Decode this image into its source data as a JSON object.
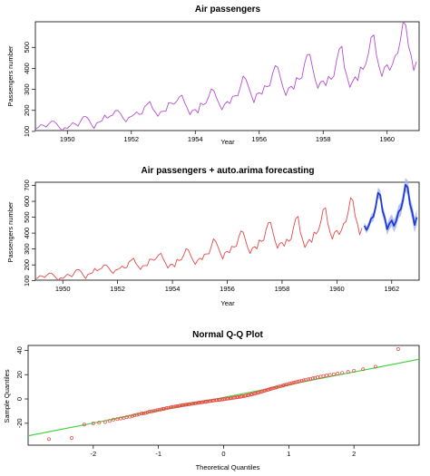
{
  "chart_data": [
    {
      "type": "line",
      "title": "Air passengers",
      "xlabel": "Year",
      "ylabel": "Passengers number",
      "xlim": [
        1949,
        1961
      ],
      "ylim": [
        104,
        622
      ],
      "xticks": [
        1950,
        1952,
        1954,
        1956,
        1958,
        1960
      ],
      "yticks": [
        100,
        200,
        300,
        400,
        500
      ],
      "colors": {
        "series": "#b64ed1"
      },
      "series": [
        {
          "x_start": 1949,
          "step": 0.0833333,
          "values": [
            112,
            118,
            132,
            129,
            121,
            135,
            148,
            148,
            136,
            119,
            104,
            118,
            115,
            126,
            141,
            135,
            125,
            149,
            170,
            170,
            158,
            133,
            114,
            140,
            145,
            150,
            178,
            163,
            172,
            178,
            199,
            199,
            184,
            162,
            146,
            166,
            171,
            180,
            193,
            181,
            183,
            218,
            230,
            242,
            209,
            191,
            172,
            194,
            196,
            196,
            236,
            235,
            229,
            243,
            264,
            272,
            237,
            211,
            180,
            201,
            204,
            188,
            235,
            227,
            234,
            264,
            302,
            293,
            259,
            229,
            203,
            229,
            242,
            233,
            267,
            269,
            270,
            315,
            364,
            347,
            312,
            274,
            237,
            278,
            284,
            277,
            317,
            313,
            318,
            374,
            413,
            405,
            355,
            306,
            271,
            306,
            315,
            301,
            356,
            348,
            355,
            422,
            465,
            467,
            404,
            347,
            305,
            336,
            340,
            318,
            362,
            348,
            363,
            435,
            491,
            505,
            404,
            359,
            310,
            337,
            360,
            342,
            406,
            396,
            420,
            472,
            548,
            559,
            463,
            407,
            362,
            405,
            417,
            391,
            419,
            461,
            472,
            535,
            622,
            606,
            508,
            461,
            390,
            432
          ]
        }
      ]
    },
    {
      "type": "line",
      "title": "Air passengers + auto.arima forecasting",
      "xlabel": "Year",
      "ylabel": "Passengers number",
      "xlim": [
        1949,
        1963
      ],
      "ylim": [
        104,
        720
      ],
      "xticks": [
        1950,
        1952,
        1954,
        1956,
        1958,
        1960,
        1962
      ],
      "yticks": [
        100,
        200,
        300,
        400,
        500,
        600,
        700
      ],
      "colors": {
        "history": "#e34a4a",
        "forecast": "#1f3bd6",
        "interval": "#a9b4e8"
      },
      "series": [
        {
          "x_start": 1949,
          "step": 0.0833333,
          "values": [
            112,
            118,
            132,
            129,
            121,
            135,
            148,
            148,
            136,
            119,
            104,
            118,
            115,
            126,
            141,
            135,
            125,
            149,
            170,
            170,
            158,
            133,
            114,
            140,
            145,
            150,
            178,
            163,
            172,
            178,
            199,
            199,
            184,
            162,
            146,
            166,
            171,
            180,
            193,
            181,
            183,
            218,
            230,
            242,
            209,
            191,
            172,
            194,
            196,
            196,
            236,
            235,
            229,
            243,
            264,
            272,
            237,
            211,
            180,
            201,
            204,
            188,
            235,
            227,
            234,
            264,
            302,
            293,
            259,
            229,
            203,
            229,
            242,
            233,
            267,
            269,
            270,
            315,
            364,
            347,
            312,
            274,
            237,
            278,
            284,
            277,
            317,
            313,
            318,
            374,
            413,
            405,
            355,
            306,
            271,
            306,
            315,
            301,
            356,
            348,
            355,
            422,
            465,
            467,
            404,
            347,
            305,
            336,
            340,
            318,
            362,
            348,
            363,
            435,
            491,
            505,
            404,
            359,
            310,
            337,
            360,
            342,
            406,
            396,
            420,
            472,
            548,
            559,
            463,
            407,
            362,
            405,
            417,
            391,
            419,
            461,
            472,
            535,
            622,
            606,
            508,
            461,
            390,
            432
          ]
        },
        {
          "x_start": 1961,
          "step": 0.0833333,
          "values": [
            446,
            420,
            449,
            491,
            503,
            566,
            654,
            638,
            540,
            494,
            424,
            460,
            480,
            445,
            478,
            534,
            551,
            612,
            704,
            688,
            583,
            532,
            451,
            500
          ],
          "interval_halfwidth": [
            20,
            22,
            24,
            26,
            28,
            30,
            32,
            33,
            34,
            35,
            36,
            37,
            38,
            39,
            40,
            41,
            42,
            43,
            44,
            45,
            46,
            47,
            48,
            49
          ]
        }
      ]
    },
    {
      "type": "scatter",
      "title": "Normal Q-Q Plot",
      "xlabel": "Theoretical Quantiles",
      "ylabel": "Sample Quantiles",
      "xlim": [
        -3,
        3
      ],
      "ylim": [
        -38,
        44
      ],
      "xticks": [
        -2,
        -1,
        0,
        1,
        2
      ],
      "yticks": [
        -20,
        0,
        20,
        40
      ],
      "colors": {
        "points": "#e8453c",
        "line": "#3ccf3c"
      },
      "reference_line": {
        "intercept": 1.2,
        "slope": 10.5
      },
      "points": [
        [
          -2.68,
          -33
        ],
        [
          -2.33,
          -32
        ],
        [
          -2.14,
          -21
        ],
        [
          -2.0,
          -20
        ],
        [
          -1.91,
          -19.5
        ],
        [
          -1.82,
          -19
        ],
        [
          -1.75,
          -18
        ],
        [
          -1.69,
          -17
        ],
        [
          -1.63,
          -16.5
        ],
        [
          -1.58,
          -16
        ],
        [
          -1.53,
          -15.5
        ],
        [
          -1.49,
          -15
        ],
        [
          -1.44,
          -14.5
        ],
        [
          -1.4,
          -14
        ],
        [
          -1.37,
          -13.5
        ],
        [
          -1.33,
          -13
        ],
        [
          -1.3,
          -12.5
        ],
        [
          -1.26,
          -12
        ],
        [
          -1.23,
          -11.8
        ],
        [
          -1.2,
          -11.5
        ],
        [
          -1.17,
          -11
        ],
        [
          -1.14,
          -10.5
        ],
        [
          -1.11,
          -10.2
        ],
        [
          -1.08,
          -10
        ],
        [
          -1.05,
          -9.6
        ],
        [
          -1.02,
          -9.2
        ],
        [
          -0.99,
          -9
        ],
        [
          -0.96,
          -8.6
        ],
        [
          -0.93,
          -8.2
        ],
        [
          -0.91,
          -8
        ],
        [
          -0.88,
          -7.6
        ],
        [
          -0.85,
          -7.3
        ],
        [
          -0.82,
          -7
        ],
        [
          -0.8,
          -6.8
        ],
        [
          -0.77,
          -6.5
        ],
        [
          -0.74,
          -6.2
        ],
        [
          -0.72,
          -6
        ],
        [
          -0.69,
          -5.8
        ],
        [
          -0.67,
          -5.5
        ],
        [
          -0.64,
          -5.2
        ],
        [
          -0.62,
          -5
        ],
        [
          -0.59,
          -4.8
        ],
        [
          -0.57,
          -4.6
        ],
        [
          -0.54,
          -4.4
        ],
        [
          -0.52,
          -4.2
        ],
        [
          -0.49,
          -4
        ],
        [
          -0.47,
          -3.8
        ],
        [
          -0.44,
          -3.6
        ],
        [
          -0.42,
          -3.4
        ],
        [
          -0.39,
          -3.2
        ],
        [
          -0.37,
          -3
        ],
        [
          -0.34,
          -2.8
        ],
        [
          -0.32,
          -2.6
        ],
        [
          -0.29,
          -2.4
        ],
        [
          -0.27,
          -2.2
        ],
        [
          -0.25,
          -2
        ],
        [
          -0.22,
          -1.8
        ],
        [
          -0.2,
          -1.6
        ],
        [
          -0.17,
          -1.4
        ],
        [
          -0.15,
          -1.2
        ],
        [
          -0.12,
          -1
        ],
        [
          -0.1,
          -0.9
        ],
        [
          -0.07,
          -0.8
        ],
        [
          -0.05,
          -0.6
        ],
        [
          -0.02,
          -0.4
        ],
        [
          0.0,
          -0.2
        ],
        [
          0.02,
          0
        ],
        [
          0.05,
          0.2
        ],
        [
          0.07,
          0.3
        ],
        [
          0.1,
          0.5
        ],
        [
          0.12,
          0.7
        ],
        [
          0.15,
          0.9
        ],
        [
          0.17,
          1.1
        ],
        [
          0.2,
          1.3
        ],
        [
          0.22,
          1.5
        ],
        [
          0.25,
          1.7
        ],
        [
          0.27,
          2
        ],
        [
          0.29,
          2.2
        ],
        [
          0.32,
          2.4
        ],
        [
          0.34,
          2.7
        ],
        [
          0.37,
          3
        ],
        [
          0.39,
          3.3
        ],
        [
          0.42,
          3.6
        ],
        [
          0.44,
          4
        ],
        [
          0.47,
          4.3
        ],
        [
          0.49,
          4.7
        ],
        [
          0.52,
          5
        ],
        [
          0.54,
          5.4
        ],
        [
          0.57,
          5.8
        ],
        [
          0.59,
          6.2
        ],
        [
          0.62,
          6.6
        ],
        [
          0.64,
          7
        ],
        [
          0.67,
          7.4
        ],
        [
          0.69,
          7.8
        ],
        [
          0.72,
          8.2
        ],
        [
          0.74,
          8.6
        ],
        [
          0.77,
          9
        ],
        [
          0.8,
          9.4
        ],
        [
          0.82,
          9.8
        ],
        [
          0.85,
          10.2
        ],
        [
          0.88,
          10.6
        ],
        [
          0.91,
          11
        ],
        [
          0.93,
          11.4
        ],
        [
          0.96,
          11.8
        ],
        [
          0.99,
          12.2
        ],
        [
          1.02,
          12.6
        ],
        [
          1.05,
          13
        ],
        [
          1.08,
          13.4
        ],
        [
          1.11,
          13.8
        ],
        [
          1.14,
          14.2
        ],
        [
          1.17,
          14.6
        ],
        [
          1.2,
          15
        ],
        [
          1.23,
          15.4
        ],
        [
          1.26,
          15.8
        ],
        [
          1.3,
          16.2
        ],
        [
          1.33,
          16.6
        ],
        [
          1.37,
          17
        ],
        [
          1.4,
          17.4
        ],
        [
          1.44,
          17.8
        ],
        [
          1.49,
          18.3
        ],
        [
          1.53,
          18.8
        ],
        [
          1.58,
          19.3
        ],
        [
          1.63,
          19.8
        ],
        [
          1.69,
          20.3
        ],
        [
          1.75,
          20.8
        ],
        [
          1.82,
          21.4
        ],
        [
          1.91,
          22.2
        ],
        [
          2.0,
          23.2
        ],
        [
          2.14,
          24.5
        ],
        [
          2.33,
          26.5
        ],
        [
          2.68,
          41
        ]
      ]
    }
  ]
}
